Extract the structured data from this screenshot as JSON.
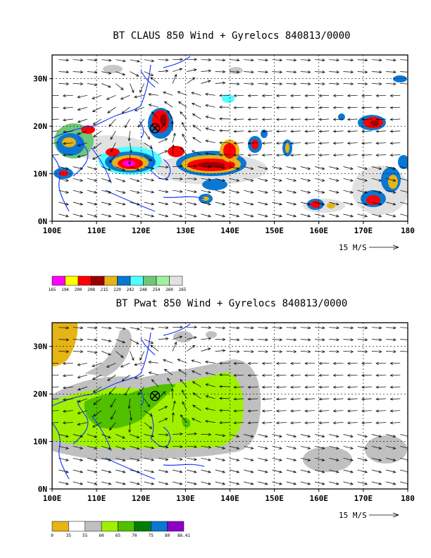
{
  "charts": [
    {
      "title": "BT CLAUS 850 Wind + Gyrelocs 840813/0000",
      "x_ticks": [
        "100E",
        "110E",
        "120E",
        "130E",
        "140E",
        "150E",
        "160E",
        "170E",
        "180"
      ],
      "y_ticks": [
        "0N",
        "10N",
        "20N",
        "30N"
      ],
      "scale_label": "15 M/S",
      "legend": {
        "colors": [
          "#ff00ff",
          "#ffff00",
          "#ff0000",
          "#9b0000",
          "#e6b414",
          "#0a78d2",
          "#50ffff",
          "#6ec878",
          "#a0f0a0",
          "#e1e1e1"
        ],
        "labels": [
          "165",
          "194",
          "200",
          "208",
          "215",
          "220",
          "242",
          "248",
          "254",
          "260",
          "265"
        ]
      }
    },
    {
      "title": "BT Pwat 850 Wind + Gyrelocs 840813/0000",
      "x_ticks": [
        "100E",
        "110E",
        "120E",
        "130E",
        "140E",
        "150E",
        "160E",
        "170E",
        "180"
      ],
      "y_ticks": [
        "0N",
        "10N",
        "20N",
        "30N"
      ],
      "scale_label": "15 M/S",
      "legend": {
        "colors": [
          "#e6b414",
          "#ffffff",
          "#c0c0c0",
          "#a0f000",
          "#50c000",
          "#008000",
          "#0a78d2",
          "#8c00c8"
        ],
        "labels": [
          "0",
          "35",
          "55",
          "60",
          "65",
          "70",
          "75",
          "80",
          "86.41"
        ]
      }
    }
  ],
  "chart_data": [
    {
      "type": "heatmap",
      "title": "BT CLAUS 850 Wind + Gyrelocs 840813/0000",
      "variable": "CLAUS brightness temperature with 850 hPa wind vectors",
      "x_range": [
        100,
        180
      ],
      "y_range": [
        0,
        35
      ],
      "x_ticks": [
        100,
        110,
        120,
        130,
        140,
        150,
        160,
        170,
        180
      ],
      "y_ticks": [
        0,
        10,
        20,
        30
      ],
      "grid": "dashed every 10 degrees",
      "reference_vector_ms": 15,
      "gyre_location": {
        "lon": 122.5,
        "lat": 20.5
      },
      "colorbar_levels": [
        165,
        194,
        200,
        208,
        215,
        220,
        242,
        248,
        254,
        260,
        265
      ]
    },
    {
      "type": "heatmap",
      "title": "BT Pwat 850 Wind + Gyrelocs 840813/0000",
      "variable": "Precipitable water with 850 hPa wind vectors",
      "x_range": [
        100,
        180
      ],
      "y_range": [
        0,
        35
      ],
      "x_ticks": [
        100,
        110,
        120,
        130,
        140,
        150,
        160,
        170,
        180
      ],
      "y_ticks": [
        0,
        10,
        20,
        30
      ],
      "grid": "dashed every 10 degrees",
      "reference_vector_ms": 15,
      "gyre_location": {
        "lon": 122.5,
        "lat": 20.5
      },
      "colorbar_levels": [
        0,
        35,
        55,
        60,
        65,
        70,
        75,
        80,
        86.41
      ]
    }
  ]
}
